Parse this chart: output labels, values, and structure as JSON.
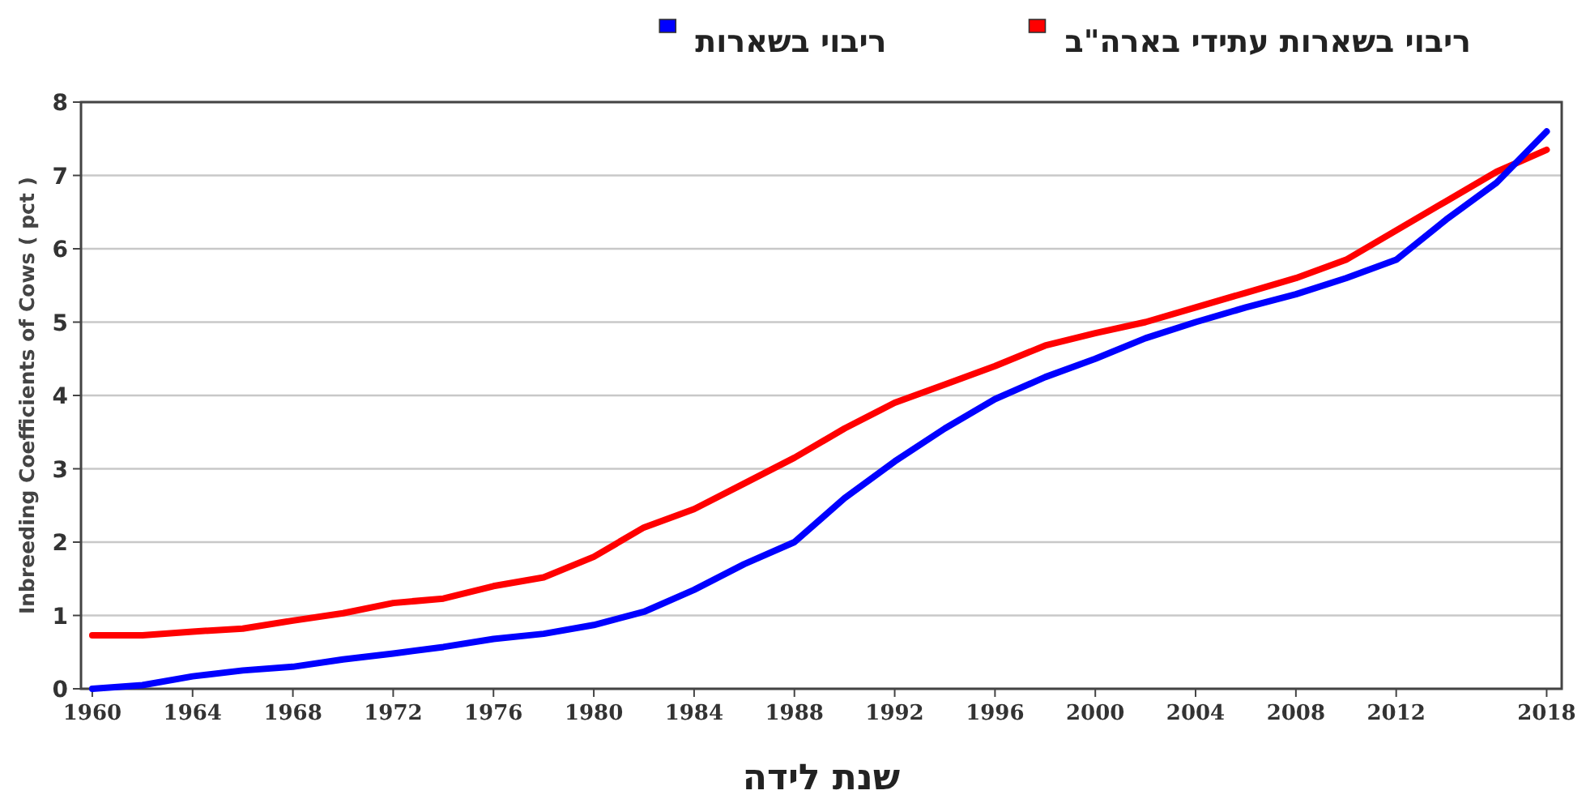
{
  "chart_data": {
    "type": "line",
    "xlabel": "שנת לידה",
    "ylabel": "Inbreeding Coefficients of Cows ( pct )",
    "x": [
      1960,
      1962,
      1964,
      1966,
      1968,
      1970,
      1972,
      1974,
      1976,
      1978,
      1980,
      1982,
      1984,
      1986,
      1988,
      1990,
      1992,
      1994,
      1996,
      1998,
      2000,
      2002,
      2004,
      2006,
      2008,
      2010,
      2012,
      2014,
      2016,
      2018
    ],
    "series": [
      {
        "name": "ריבוי בשארות עתידי בארה\"ב",
        "color": "#ff0000",
        "values": [
          0.73,
          0.73,
          0.78,
          0.82,
          0.93,
          1.03,
          1.17,
          1.23,
          1.4,
          1.52,
          1.8,
          2.2,
          2.45,
          2.8,
          3.15,
          3.55,
          3.9,
          4.15,
          4.4,
          4.68,
          4.85,
          5.0,
          5.2,
          5.4,
          5.6,
          5.85,
          6.25,
          6.65,
          7.05,
          7.35
        ]
      },
      {
        "name": "ריבוי בשארות",
        "color": "#0000ff",
        "values": [
          0.0,
          0.05,
          0.17,
          0.25,
          0.3,
          0.4,
          0.48,
          0.57,
          0.68,
          0.75,
          0.87,
          1.05,
          1.35,
          1.7,
          2.0,
          2.6,
          3.1,
          3.55,
          3.95,
          4.25,
          4.5,
          4.78,
          5.0,
          5.2,
          5.38,
          5.6,
          5.85,
          6.4,
          6.9,
          7.6
        ]
      }
    ],
    "xlim": [
      1959.55,
      2018.6
    ],
    "xticks": [
      1960,
      1964,
      1968,
      1972,
      1976,
      1980,
      1984,
      1988,
      1992,
      1996,
      2000,
      2004,
      2008,
      2012,
      2018
    ],
    "ylim": [
      0,
      8
    ],
    "yticks": [
      0,
      1,
      2,
      3,
      4,
      5,
      6,
      7,
      8
    ],
    "grid": "y",
    "legend": "top",
    "marker": "none",
    "line_style": "solid"
  }
}
